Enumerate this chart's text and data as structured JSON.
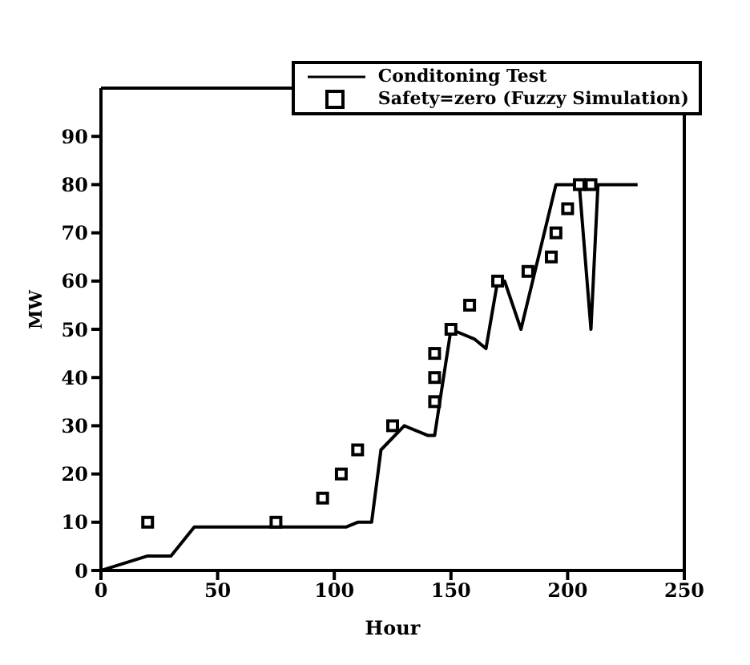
{
  "chart_data": {
    "type": "line",
    "xlabel": "Hour",
    "ylabel": "MW",
    "xlim": [
      0,
      250
    ],
    "xticks": [
      0,
      50,
      100,
      150,
      200,
      250
    ],
    "ylim": [
      0,
      100
    ],
    "yticks": [
      0,
      10,
      20,
      30,
      40,
      50,
      60,
      70,
      80,
      90
    ],
    "grid": false,
    "legend": "top right",
    "series": [
      {
        "name": "Conditoning Test",
        "color": "#000000",
        "marker": "none",
        "x": [
          0,
          20,
          30,
          40,
          105,
          110,
          116,
          120,
          130,
          140,
          143,
          150,
          160,
          165,
          170,
          173,
          180,
          195,
          205,
          210,
          213,
          230
        ],
        "values": [
          0,
          3,
          3,
          9,
          9,
          10,
          10,
          25,
          30,
          28,
          28,
          50,
          48,
          46,
          60,
          60,
          50,
          80,
          80,
          50,
          80,
          80
        ]
      },
      {
        "name": "Safety=zero (Fuzzy Simulation)",
        "type": "scatter",
        "color": "#000000",
        "marker": "square",
        "x": [
          20,
          75,
          95,
          103,
          110,
          125,
          143,
          143,
          143,
          150,
          158,
          170,
          183,
          193,
          195,
          200,
          205,
          210
        ],
        "values": [
          10,
          10,
          15,
          20,
          25,
          30,
          35,
          40,
          45,
          50,
          55,
          60,
          62,
          65,
          70,
          75,
          80,
          80
        ]
      }
    ]
  }
}
